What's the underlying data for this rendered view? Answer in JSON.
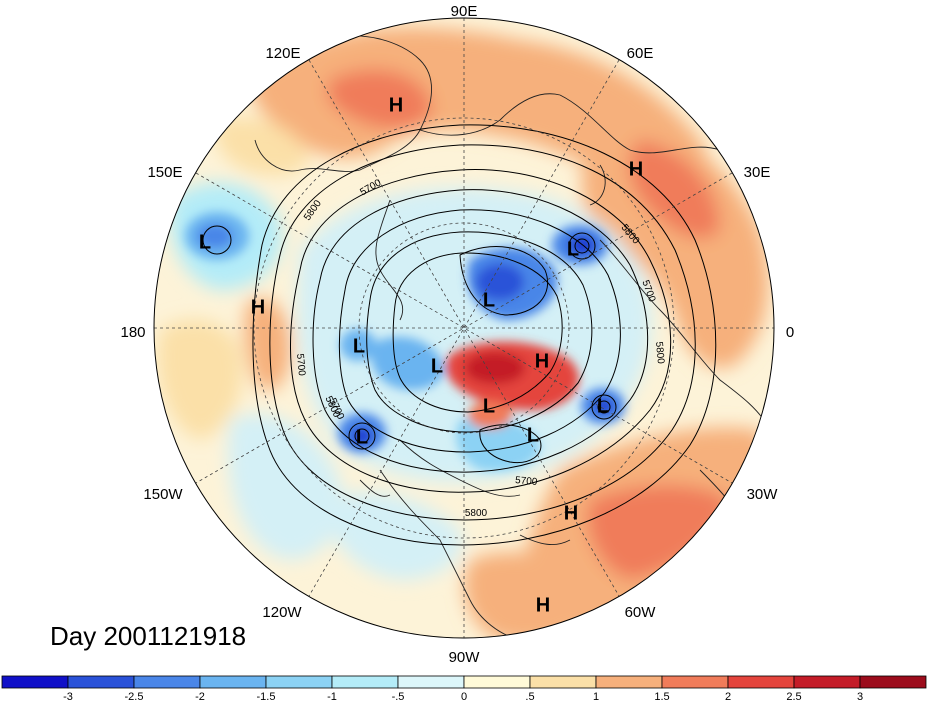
{
  "title": "Day 2001121918",
  "projection": "north-polar-stereographic",
  "longitude_labels": [
    "90E",
    "60E",
    "30E",
    "0",
    "30W",
    "60W",
    "90W",
    "120W",
    "150W",
    "180",
    "150E",
    "120E"
  ],
  "contour_labels": [
    "5700",
    "5800",
    "5800",
    "5700",
    "5800",
    "5700",
    "5800",
    "5700",
    "5800",
    "5700"
  ],
  "pressure_centers": [
    {
      "type": "H"
    },
    {
      "type": "H"
    },
    {
      "type": "L"
    },
    {
      "type": "H"
    },
    {
      "type": "L"
    },
    {
      "type": "L"
    },
    {
      "type": "L"
    },
    {
      "type": "L"
    },
    {
      "type": "H"
    },
    {
      "type": "L"
    },
    {
      "type": "L"
    },
    {
      "type": "L"
    },
    {
      "type": "L"
    },
    {
      "type": "H"
    },
    {
      "type": "H"
    }
  ],
  "colorbar": {
    "ticks": [
      "-3",
      "-2.5",
      "-2",
      "-1.5",
      "-1",
      "-.5",
      "0",
      ".5",
      "1",
      "1.5",
      "2",
      "2.5",
      "3"
    ],
    "colors": [
      "#1010c8",
      "#2a52d8",
      "#4a86e8",
      "#6ab4f0",
      "#8cd2f4",
      "#b4ecf8",
      "#dcf6fa",
      "#fffad8",
      "#fbe0a8",
      "#f6b07c",
      "#f07c5a",
      "#e4443c",
      "#c41c28",
      "#9c0c1c"
    ]
  },
  "palette": {
    "deep_blue": "#1e3ad0",
    "blue": "#4a86e8",
    "light_blue": "#8cd2f4",
    "pale_blue": "#d4f0f6",
    "pale_yellow": "#fdf3d8",
    "orange": "#f6b07c",
    "red_orange": "#f07c5a",
    "red": "#d42c30"
  }
}
